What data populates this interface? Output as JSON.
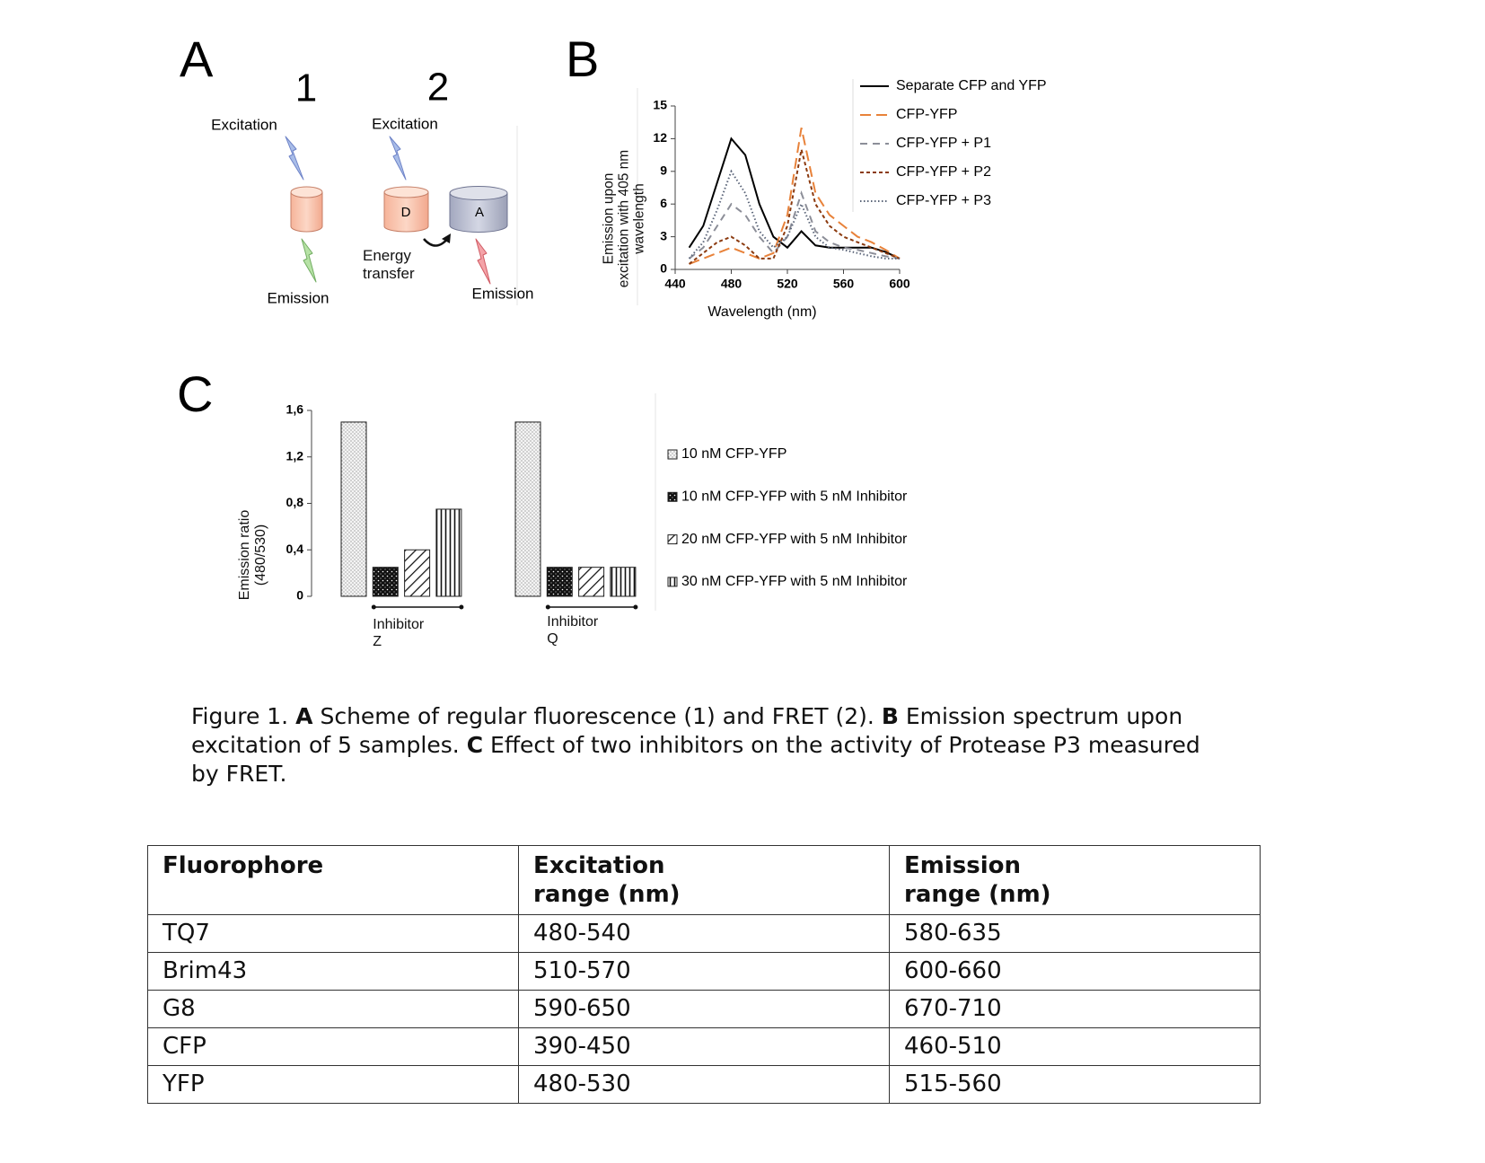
{
  "chart_data": [
    {
      "type": "line",
      "xlabel": "Wavelength (nm)",
      "ylabel": "Emission upon excitation with 405 nm wavelength",
      "x": [
        450,
        460,
        470,
        480,
        490,
        500,
        510,
        520,
        530,
        540,
        550,
        560,
        570,
        580,
        590,
        600
      ],
      "xlim": [
        440,
        600
      ],
      "xticks": [
        440,
        480,
        520,
        560,
        600
      ],
      "ylim": [
        0,
        15
      ],
      "yticks": [
        0,
        3,
        6,
        9,
        12,
        15
      ],
      "legend": "right",
      "series": [
        {
          "name": "Separate CFP and YFP",
          "color": "#000000",
          "dash": "solid",
          "values": [
            2,
            4,
            8,
            12,
            10.5,
            6,
            3,
            2,
            3.5,
            2.2,
            2,
            2,
            2,
            2,
            1.6,
            1
          ]
        },
        {
          "name": "CFP-YFP",
          "color": "#e8823a",
          "dash": "long",
          "values": [
            0.5,
            1,
            1.5,
            2,
            1.5,
            1,
            1.5,
            5,
            13,
            7,
            5,
            4,
            3,
            2.5,
            1.8,
            1
          ]
        },
        {
          "name": "CFP-YFP + P1",
          "color": "#8c8e98",
          "dash": "medium",
          "values": [
            1,
            2,
            4,
            6,
            5,
            3,
            1.5,
            3,
            7,
            3.5,
            2.5,
            2,
            1.8,
            1.5,
            1.2,
            1
          ]
        },
        {
          "name": "CFP-YFP + P2",
          "color": "#8b3a0f",
          "dash": "short",
          "values": [
            0.5,
            1.5,
            2.5,
            3,
            2.2,
            1,
            1,
            4,
            11,
            6,
            4,
            3,
            2.5,
            2,
            1.5,
            1
          ]
        },
        {
          "name": "CFP-YFP + P3",
          "color": "#5a6478",
          "dash": "dotted",
          "values": [
            1,
            2.5,
            5.5,
            9,
            7,
            3.5,
            2,
            3,
            6,
            3,
            2,
            1.8,
            1.5,
            1.2,
            1,
            1
          ]
        }
      ]
    },
    {
      "type": "bar",
      "ylabel": "Emission ratio (480/530)",
      "categories": [
        "Inhibitor Z",
        "Inhibitor Q"
      ],
      "ylim": [
        0,
        1.6
      ],
      "yticks": [
        0,
        {
          "value": 0.4,
          "label": "0,4"
        },
        {
          "value": 0.8,
          "label": "0,8"
        },
        {
          "value": 1.2,
          "label": "1,2"
        },
        {
          "value": 1.6,
          "label": "1,6"
        }
      ],
      "legend": "right",
      "series": [
        {
          "name": "10 nM CFP-YFP",
          "pattern": "dots-light",
          "values": [
            1.5,
            1.5
          ]
        },
        {
          "name": "10 nM CFP-YFP with 5 nM Inhibitor",
          "pattern": "dots-dark",
          "values": [
            0.25,
            0.25
          ]
        },
        {
          "name": "20 nM CFP-YFP with 5 nM Inhibitor",
          "pattern": "diagonal",
          "values": [
            0.4,
            0.25
          ]
        },
        {
          "name": "30 nM CFP-YFP with 5 nM Inhibitor",
          "pattern": "vertical",
          "values": [
            0.75,
            0.25
          ]
        }
      ]
    }
  ],
  "document": {
    "panel_labels": {
      "a": "A",
      "b": "B",
      "c": "C"
    },
    "scheme_1": {
      "number": "1",
      "excitation": "Excitation",
      "emission": "Emission"
    },
    "scheme_2": {
      "number": "2",
      "excitation": "Excitation",
      "donor": "D",
      "acceptor": "A",
      "energy_transfer": "Energy transfer",
      "emission": "Emission"
    },
    "caption": {
      "prefix": "Figure 1.",
      "parts": [
        {
          "label": "A",
          "text": "Scheme of regular fluorescence (1) and FRET (2)."
        },
        {
          "label": "B",
          "text": "Emission spectrum upon excitation of 5 samples."
        },
        {
          "label": "C",
          "text": "Effect of two inhibitors on the activity of Protease P3 measured by FRET."
        }
      ]
    },
    "table": {
      "header": [
        "Fluorophore",
        "Excitation range (nm)",
        "Emission range (nm)"
      ],
      "rows": [
        [
          "TQ7",
          "480-540",
          "580-635"
        ],
        [
          "Brim43",
          "510-570",
          "600-660"
        ],
        [
          "G8",
          "590-650",
          "670-710"
        ],
        [
          "CFP",
          "390-450",
          "460-510"
        ],
        [
          "YFP",
          "480-530",
          "515-560"
        ]
      ]
    }
  }
}
